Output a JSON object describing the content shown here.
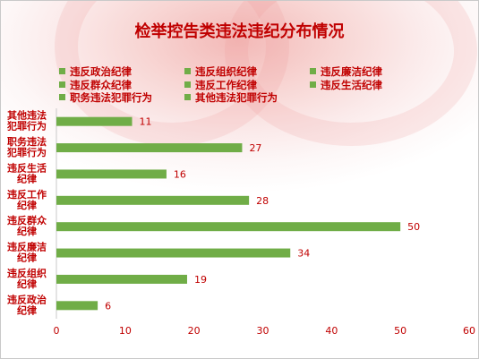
{
  "title": "检举控告类违法违纪分布情况",
  "colors": {
    "bar": "#70ad47",
    "text": "#c00000",
    "axis": "#c9c9c9"
  },
  "legend": [
    "违反政治纪律",
    "违反组织纪律",
    "违反廉洁纪律",
    "违反群众纪律",
    "违反工作纪律",
    "违反生活纪律",
    "职务违法犯罪行为",
    "其他违法犯罪行为"
  ],
  "chart_data": {
    "type": "bar",
    "orientation": "horizontal",
    "title": "检举控告类违法违纪分布情况",
    "categories": [
      [
        "其他违法",
        "犯罪行为"
      ],
      [
        "职务违法",
        "犯罪行为"
      ],
      [
        "违反生活",
        "纪律"
      ],
      [
        "违反工作",
        "纪律"
      ],
      [
        "违反群众",
        "纪律"
      ],
      [
        "违反廉洁",
        "纪律"
      ],
      [
        "违反组织",
        "纪律"
      ],
      [
        "违反政治",
        "纪律"
      ]
    ],
    "values": [
      11,
      27,
      16,
      28,
      50,
      34,
      19,
      6
    ],
    "xlim": [
      0,
      60
    ],
    "xticks": [
      0,
      10,
      20,
      30,
      40,
      50,
      60
    ],
    "grid": false,
    "legend_position": "top",
    "data_labels": true
  }
}
